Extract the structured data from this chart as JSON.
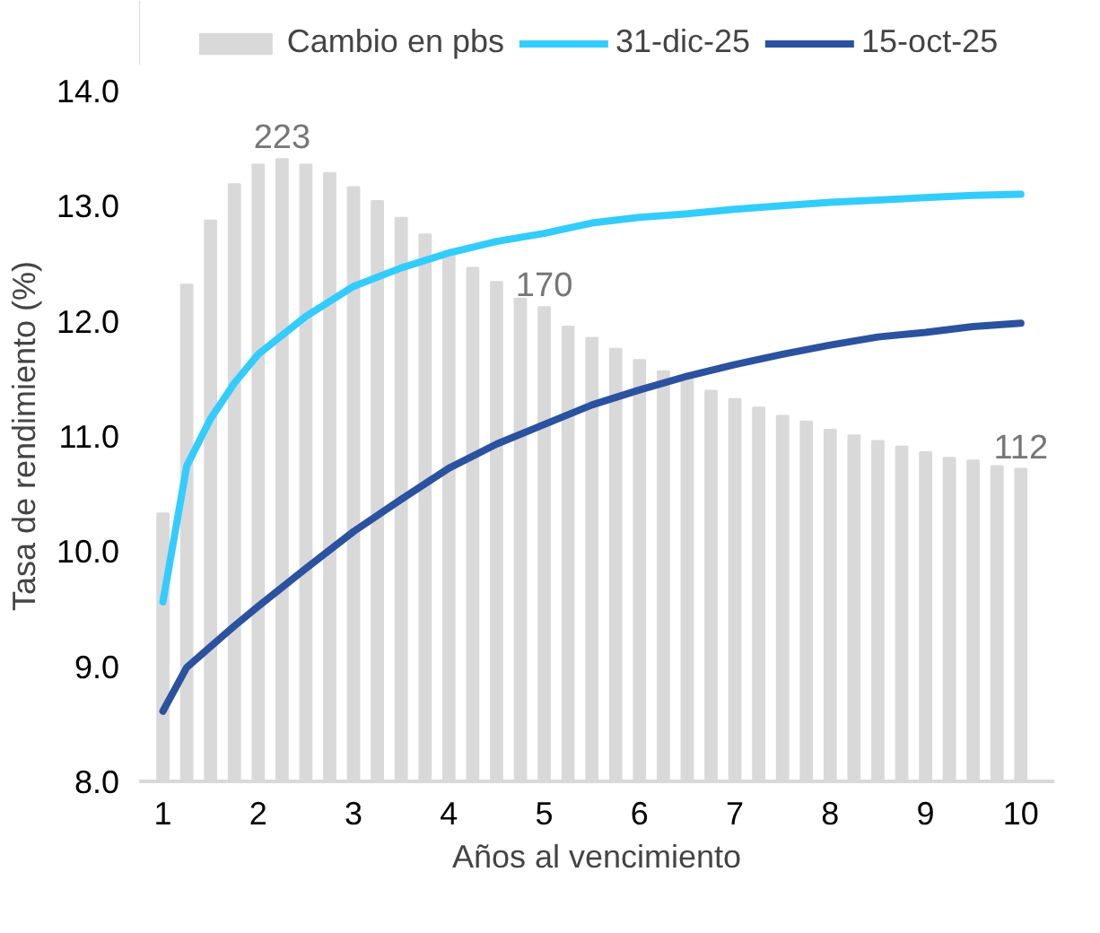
{
  "chart_data": {
    "type": "line",
    "xlabel": "Años al vencimiento",
    "ylabel": "Tasa de rendimiento (%)",
    "xlim": [
      0.75,
      10.35
    ],
    "xticks": [
      1,
      2,
      3,
      4,
      5,
      6,
      7,
      8,
      9,
      10
    ],
    "ylim": [
      8.0,
      14.0
    ],
    "yticks": [
      {
        "value": 8,
        "label": "8.0"
      },
      {
        "value": 9,
        "label": "9.0"
      },
      {
        "value": 10,
        "label": "10.0"
      },
      {
        "value": 11,
        "label": "11.0"
      },
      {
        "value": 12,
        "label": "12.0"
      },
      {
        "value": 13,
        "label": "13.0"
      },
      {
        "value": 14,
        "label": "14.0"
      }
    ],
    "grid": false,
    "legend": "top",
    "series": [
      {
        "name": "Cambio en pbs",
        "type": "bar",
        "axis": "y2",
        "color": "#d9d9d9",
        "x": [
          1,
          1.25,
          1.5,
          1.75,
          2,
          2.25,
          2.5,
          2.75,
          3,
          3.25,
          3.5,
          3.75,
          4,
          4.25,
          4.5,
          4.75,
          5,
          5.25,
          5.5,
          5.75,
          6,
          6.25,
          6.5,
          6.75,
          7,
          7.25,
          7.5,
          7.75,
          8,
          8.25,
          8.5,
          8.75,
          9,
          9.25,
          9.5,
          9.75,
          10
        ],
        "values": [
          96,
          178,
          201,
          214,
          221,
          223,
          221,
          218,
          213,
          208,
          202,
          196,
          190,
          184,
          179,
          173,
          170,
          163,
          159,
          155,
          151,
          147,
          144,
          140,
          137,
          134,
          131,
          129,
          126,
          124,
          122,
          120,
          118,
          116,
          115,
          113,
          112
        ],
        "value_labels": [
          null,
          null,
          null,
          null,
          null,
          "223",
          null,
          null,
          null,
          null,
          null,
          null,
          null,
          null,
          null,
          null,
          "170",
          null,
          null,
          null,
          null,
          null,
          null,
          null,
          null,
          null,
          null,
          null,
          null,
          null,
          null,
          null,
          null,
          null,
          null,
          null,
          "112"
        ]
      },
      {
        "name": "31-dic-25",
        "color": "#33ccff",
        "x": [
          1,
          1.25,
          1.5,
          1.75,
          2,
          2.5,
          3,
          3.5,
          4,
          4.5,
          5,
          5.5,
          6,
          6.5,
          7,
          7.5,
          8,
          8.5,
          9,
          9.5,
          10
        ],
        "values": [
          9.56,
          10.74,
          11.15,
          11.46,
          11.71,
          12.04,
          12.3,
          12.46,
          12.59,
          12.69,
          12.76,
          12.85,
          12.9,
          12.93,
          12.97,
          13.0,
          13.03,
          13.05,
          13.07,
          13.09,
          13.1
        ]
      },
      {
        "name": "15-oct-25",
        "color": "#2a52a0",
        "x": [
          1,
          1.25,
          1.5,
          1.75,
          2,
          2.5,
          3,
          3.5,
          4,
          4.5,
          5,
          5.5,
          6,
          6.5,
          7,
          7.5,
          8,
          8.5,
          9,
          9.5,
          10
        ],
        "values": [
          8.61,
          8.99,
          9.17,
          9.35,
          9.52,
          9.85,
          10.17,
          10.45,
          10.72,
          10.93,
          11.1,
          11.27,
          11.4,
          11.52,
          11.62,
          11.71,
          11.79,
          11.86,
          11.9,
          11.95,
          11.98
        ]
      }
    ]
  }
}
